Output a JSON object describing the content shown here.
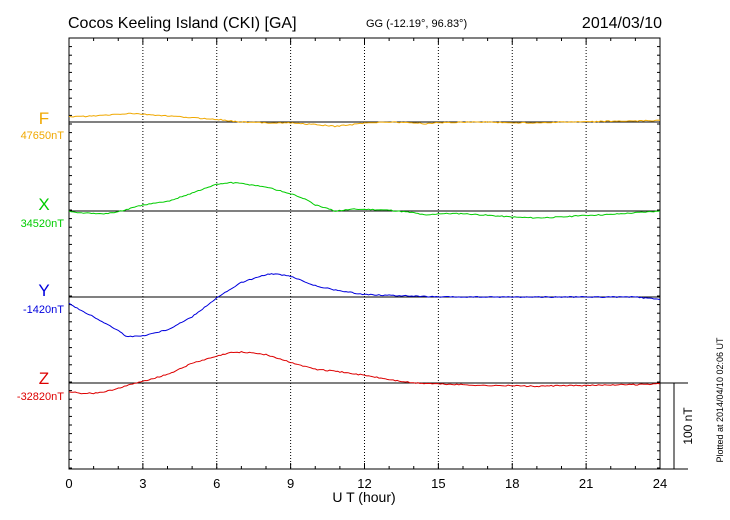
{
  "header": {
    "station": "Cocos Keeling Island (CKI)  [GA]",
    "coords": "GG (-12.19°,  96.83°)",
    "date": "2014/03/10"
  },
  "footer": {
    "plotted": "Plotted at 2014/04/10 02:06 UT"
  },
  "chart_data": {
    "type": "line",
    "xlabel": "U T (hour)",
    "xlim": [
      0,
      24
    ],
    "x_ticks": [
      0,
      3,
      6,
      9,
      12,
      15,
      18,
      21,
      24
    ],
    "x_tick_labels": [
      "0",
      "3",
      "6",
      "9",
      "12",
      "15",
      "18",
      "21",
      "24"
    ],
    "ylabel": "",
    "units": "nT",
    "grid": true,
    "scale_bar": {
      "label": "100 nT",
      "value": 100
    },
    "colors": {
      "F": "#f0a800",
      "X": "#00cc00",
      "Y": "#0000dd",
      "Z": "#dd0000"
    },
    "series": [
      {
        "name": "F",
        "baseline": 47650,
        "baseline_label": "47650nT",
        "x": [
          0,
          1,
          2,
          2.5,
          3,
          4,
          5,
          6,
          7,
          8,
          9,
          10,
          10.8,
          11.5,
          12,
          13,
          14,
          14.5,
          15,
          16,
          17,
          18,
          19,
          20,
          21,
          22,
          23,
          24
        ],
        "y": [
          47656,
          47657,
          47659,
          47660,
          47659,
          47657,
          47655,
          47653,
          47650,
          47649,
          47649,
          47647,
          47645,
          47647,
          47649,
          47650,
          47649,
          47648,
          47649,
          47650,
          47650,
          47649,
          47649,
          47650,
          47650,
          47651,
          47651,
          47652
        ]
      },
      {
        "name": "X",
        "baseline": 34520,
        "baseline_label": "34520nT",
        "x": [
          0,
          0.5,
          1,
          1.5,
          2,
          3,
          4,
          5,
          6,
          6.5,
          7,
          7.5,
          8,
          9,
          9.5,
          10,
          10.8,
          11.5,
          12,
          13,
          14,
          14.5,
          15,
          16,
          17,
          18,
          19,
          20,
          21,
          22,
          23,
          24
        ],
        "y": [
          34520,
          34518,
          34517,
          34517,
          34519,
          34527,
          34531,
          34541,
          34551,
          34553,
          34552,
          34550,
          34548,
          34540,
          34535,
          34527,
          34520,
          34522,
          34522,
          34521,
          34518,
          34515,
          34517,
          34517,
          34515,
          34513,
          34512,
          34513,
          34515,
          34516,
          34518,
          34520
        ]
      },
      {
        "name": "Y",
        "baseline": -1420,
        "baseline_label": "-1420nT",
        "x": [
          0,
          0.5,
          1,
          1.5,
          2,
          2.3,
          2.5,
          3,
          4,
          5,
          6,
          7,
          8,
          8.3,
          9,
          10,
          11,
          12,
          13,
          14,
          15,
          16,
          17,
          18,
          19,
          20,
          21,
          22,
          23,
          24
        ],
        "y": [
          -1427,
          -1436,
          -1443,
          -1451,
          -1459,
          -1465,
          -1466,
          -1465,
          -1458,
          -1443,
          -1421,
          -1403,
          -1394,
          -1393,
          -1396,
          -1407,
          -1413,
          -1417,
          -1418,
          -1419,
          -1420,
          -1420,
          -1420,
          -1420,
          -1420,
          -1420,
          -1420,
          -1420,
          -1420,
          -1423
        ]
      },
      {
        "name": "Z",
        "baseline": -32820,
        "baseline_label": "-32820nT",
        "x": [
          0,
          0.5,
          1,
          1.5,
          2,
          3,
          4,
          5,
          6,
          6.5,
          7,
          7.5,
          8,
          9,
          10,
          11,
          12,
          13,
          14,
          15,
          16,
          17,
          18,
          19,
          20,
          21,
          22,
          23,
          24
        ],
        "y": [
          -32830,
          -32832,
          -32832,
          -32830,
          -32826,
          -32818,
          -32810,
          -32797,
          -32789,
          -32785,
          -32784,
          -32785,
          -32787,
          -32796,
          -32804,
          -32807,
          -32811,
          -32816,
          -32820,
          -32821,
          -32822,
          -32823,
          -32823,
          -32824,
          -32823,
          -32823,
          -32822,
          -32822,
          -32821
        ]
      }
    ]
  }
}
